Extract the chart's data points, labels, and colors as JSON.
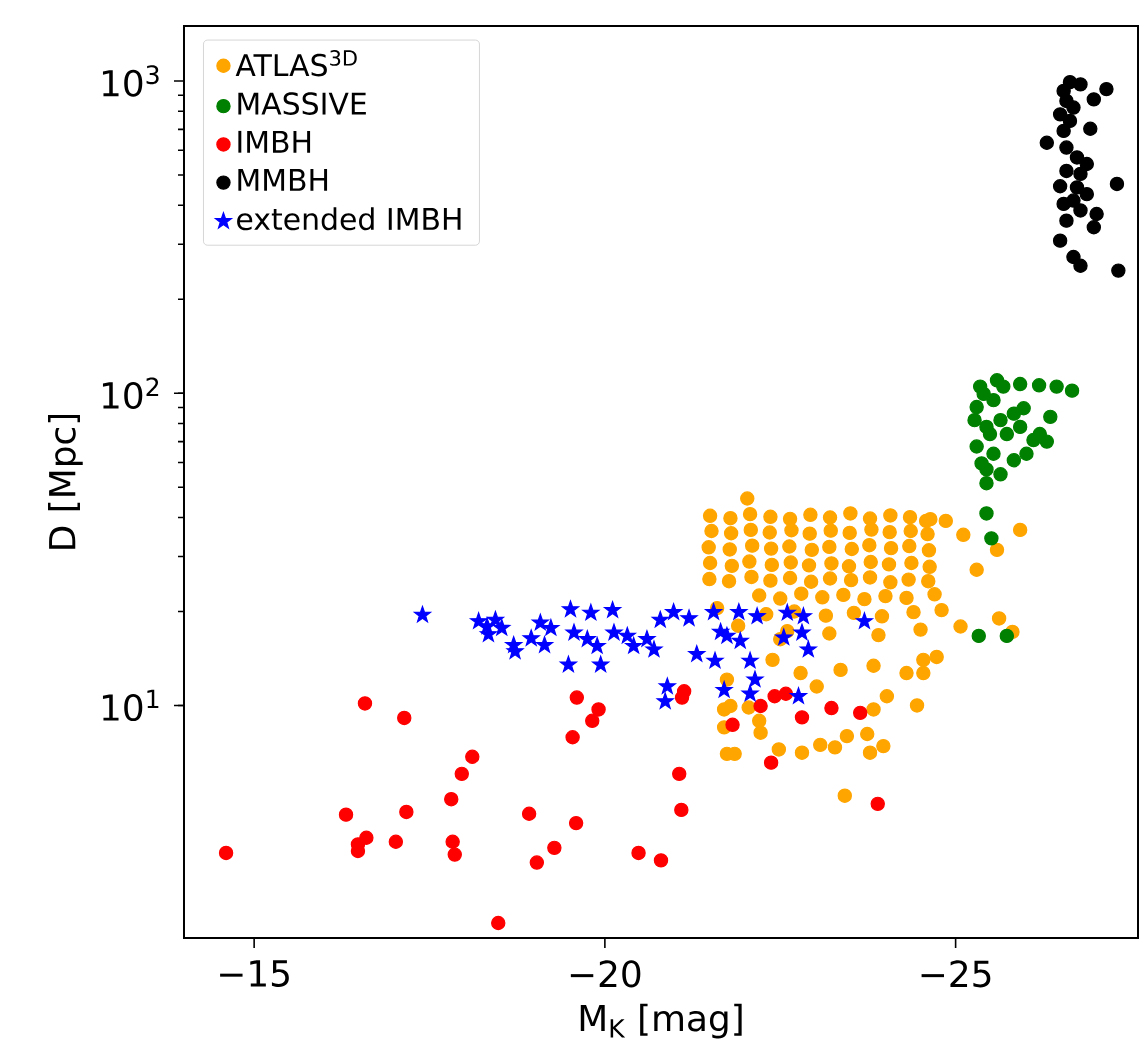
{
  "chart_data": {
    "type": "scatter",
    "xlabel": "M$_{K}$ [mag]",
    "ylabel": "D [Mpc]",
    "log": "y",
    "legend": "top left",
    "xlim": [
      -14.0,
      -27.6
    ],
    "ylim": [
      1.8,
      1500
    ],
    "xticks": [
      {
        "value": -15,
        "label": "−15"
      },
      {
        "value": -20,
        "label": "−20"
      },
      {
        "value": -25,
        "label": "−25"
      }
    ],
    "yticks": [
      {
        "value": 10,
        "label": "10$^{1}$"
      },
      {
        "value": 100,
        "label": "10$^{2}$"
      },
      {
        "value": 1000,
        "label": "10$^{3}$"
      }
    ],
    "series": [
      {
        "name": "ATLAS$^{3D}$",
        "color": "#ffa500",
        "marker": "circle",
        "x": [
          -21.5,
          -21.79,
          -22.07,
          -22.36,
          -22.64,
          -22.93,
          -23.21,
          -23.5,
          -23.78,
          -24.07,
          -24.35,
          -24.64,
          -21.52,
          -21.8,
          -22.08,
          -22.35,
          -22.66,
          -22.92,
          -23.22,
          -23.49,
          -23.8,
          -24.06,
          -24.36,
          -24.6,
          -21.48,
          -21.78,
          -22.1,
          -22.37,
          -22.63,
          -22.95,
          -23.2,
          -23.52,
          -23.77,
          -24.08,
          -24.34,
          -24.62,
          -21.5,
          -21.81,
          -22.06,
          -22.38,
          -22.65,
          -22.91,
          -23.23,
          -23.48,
          -23.79,
          -24.05,
          -24.37,
          -24.63,
          -21.49,
          -21.77,
          -22.09,
          -22.36,
          -22.64,
          -22.94,
          -23.21,
          -23.51,
          -23.78,
          -24.07,
          -24.33,
          -24.61,
          -22.2,
          -22.5,
          -22.8,
          -23.1,
          -23.4,
          -23.7,
          -24.0,
          -24.3,
          -24.7,
          -22.3,
          -22.7,
          -23.15,
          -23.55,
          -23.95,
          -24.4,
          -24.8,
          -22.6,
          -23.2,
          -23.9,
          -24.5,
          -21.6,
          -21.9,
          -22.03,
          -21.74,
          -21.7,
          -21.7,
          -21.74,
          -21.85,
          -22.05,
          -22.2,
          -22.48,
          -22.81,
          -23.07,
          -23.28,
          -23.45,
          -23.78,
          -23.97,
          -23.74,
          -23.83,
          -24.02,
          -24.45,
          -23.42,
          -22.39,
          -22.79,
          -23.36,
          -23.83,
          -24.3,
          -24.54,
          -22.5,
          -23.02,
          -21.79,
          -22.22,
          -24.58,
          -24.86,
          -25.11,
          -25.92,
          -25.3,
          -25.62,
          -25.81,
          -25.07,
          -24.73,
          -24.54,
          -25.59
        ],
        "values": [
          40.5,
          39.8,
          41.0,
          40.2,
          39.6,
          40.8,
          40.0,
          41.2,
          39.7,
          40.6,
          40.1,
          39.5,
          36.2,
          35.6,
          36.5,
          35.8,
          36.4,
          35.5,
          36.3,
          35.7,
          36.6,
          35.9,
          36.2,
          35.4,
          32.1,
          31.6,
          32.5,
          31.8,
          32.3,
          31.5,
          32.2,
          31.7,
          32.6,
          31.9,
          32.4,
          31.4,
          28.6,
          28.0,
          28.9,
          28.2,
          28.7,
          28.1,
          28.5,
          27.9,
          28.8,
          28.3,
          28.6,
          27.8,
          25.4,
          25.0,
          25.8,
          25.1,
          25.6,
          24.9,
          25.5,
          25.2,
          25.7,
          24.8,
          25.3,
          25.0,
          22.5,
          22.0,
          22.8,
          22.2,
          22.6,
          21.9,
          22.4,
          22.1,
          22.7,
          19.6,
          20.0,
          19.4,
          19.8,
          19.3,
          19.9,
          20.2,
          17.3,
          17.0,
          16.8,
          17.5,
          20.5,
          18.0,
          46.0,
          12.1,
          9.71,
          8.51,
          7.0,
          7.0,
          9.85,
          8.93,
          7.23,
          7.06,
          7.48,
          7.34,
          7.98,
          7.06,
          7.41,
          8.1,
          9.71,
          10.7,
          10.0,
          5.14,
          14.0,
          12.7,
          13.0,
          13.4,
          12.7,
          14.0,
          16.3,
          11.5,
          9.96,
          8.18,
          39,
          39,
          35.2,
          36.5,
          27.2,
          19.0,
          17.2,
          17.9,
          14.3,
          12.7,
          31.5
        ]
      },
      {
        "name": "MASSIVE",
        "color": "#008000",
        "marker": "circle",
        "x": [
          -25.44,
          -25.51,
          -25.33,
          -25.73,
          -26.66,
          -26.44,
          -26.19,
          -26.35,
          -26.3,
          -25.92,
          -25.97,
          -26.01,
          -25.64,
          -25.44,
          -25.35,
          -25.3,
          -25.3,
          -25.37,
          -25.54,
          -25.64,
          -25.73,
          -25.83,
          -25.49,
          -25.68,
          -25.83,
          -26.11,
          -25.54,
          -25.44,
          -25.4,
          -25.59,
          -25.92,
          -26.2,
          -25.27,
          -25.44
        ],
        "values": [
          41.2,
          34.3,
          16.7,
          16.7,
          101.9,
          105,
          106,
          84,
          70,
          107,
          89.5,
          64,
          55,
          51.5,
          105,
          90.3,
          67.5,
          59.6,
          95,
          82,
          74,
          61,
          74,
          105,
          86,
          70.8,
          64,
          78,
          99.5,
          110,
          78,
          74,
          82,
          57
        ]
      },
      {
        "name": "IMBH",
        "color": "#ff0000",
        "marker": "circle",
        "x": [
          -14.6,
          -16.58,
          -17.14,
          -18.11,
          -17.96,
          -17.81,
          -16.31,
          -17.17,
          -16.6,
          -16.48,
          -16.48,
          -17.02,
          -17.83,
          -17.86,
          -18.92,
          -19.03,
          -19.28,
          -18.48,
          -19.6,
          -19.54,
          -19.59,
          -19.91,
          -19.82,
          -21.06,
          -21.09,
          -20.48,
          -20.8,
          -21.13,
          -21.1,
          -21.82,
          -22.22,
          -22.37,
          -22.42,
          -22.58,
          -22.81,
          -23.23,
          -23.64,
          -23.89
        ],
        "values": [
          3.37,
          10.15,
          9.12,
          6.85,
          6.04,
          5.01,
          4.47,
          4.56,
          3.77,
          3.59,
          3.42,
          3.66,
          3.66,
          3.33,
          4.5,
          3.14,
          3.5,
          2.01,
          10.6,
          7.91,
          4.2,
          9.71,
          8.93,
          6.04,
          4.63,
          3.37,
          3.19,
          11.1,
          10.6,
          8.67,
          9.96,
          6.56,
          10.7,
          10.9,
          9.16,
          9.81,
          9.47,
          4.84
        ]
      },
      {
        "name": "MMBH",
        "color": "#000000",
        "marker": "circle",
        "x": [
          -26.63,
          -26.78,
          -27.15,
          -26.97,
          -26.58,
          -26.63,
          -26.92,
          -26.3,
          -26.58,
          -26.87,
          -26.58,
          -26.49,
          -26.73,
          -27.3,
          -26.87,
          -26.54,
          -26.78,
          -27.01,
          -26.58,
          -26.97,
          -26.49,
          -26.68,
          -26.78,
          -27.32,
          -26.54,
          -26.49,
          -26.68,
          -26.54,
          -26.78,
          -26.68,
          -26.73
        ],
        "values": [
          991,
          975,
          942,
          873,
          863,
          745,
          703,
          634,
          612,
          542,
          515,
          460,
          456,
          468,
          434,
          404,
          385,
          375,
          357,
          340,
          308,
          273,
          256,
          247,
          692,
          782,
          822,
          929,
          504,
          414,
          569
        ]
      },
      {
        "name": "extended IMBH",
        "color": "#0000ff",
        "marker": "star",
        "x": [
          -17.4,
          -18.2,
          -18.32,
          -18.44,
          -18.53,
          -18.34,
          -18.7,
          -18.72,
          -18.95,
          -19.08,
          -19.23,
          -19.14,
          -19.56,
          -19.48,
          -19.51,
          -19.8,
          -20.11,
          -19.75,
          -19.89,
          -19.94,
          -20.13,
          -20.32,
          -20.41,
          -20.6,
          -20.7,
          -20.79,
          -20.98,
          -21.2,
          -20.89,
          -20.86,
          -21.31,
          -21.55,
          -21.57,
          -21.65,
          -21.74,
          -21.91,
          -21.93,
          -22.07,
          -22.17,
          -22.14,
          -22.07,
          -21.7,
          -22.6,
          -22.83,
          -22.55,
          -22.81,
          -22.9,
          -22.76,
          -23.7
        ],
        "values": [
          19.5,
          18.6,
          17.9,
          18.8,
          17.7,
          16.9,
          15.6,
          14.9,
          16.4,
          18.4,
          17.7,
          15.6,
          17.1,
          13.5,
          20.3,
          19.8,
          20.2,
          16.3,
          15.5,
          13.5,
          17.1,
          16.7,
          15.5,
          16.3,
          15.1,
          18.8,
          19.9,
          19.0,
          11.5,
          10.3,
          14.6,
          19.9,
          13.9,
          17.2,
          16.7,
          19.9,
          16.1,
          13.9,
          19.3,
          12.1,
          10.9,
          11.2,
          19.8,
          19.3,
          16.5,
          17.1,
          15.1,
          10.7,
          18.6
        ]
      }
    ]
  }
}
